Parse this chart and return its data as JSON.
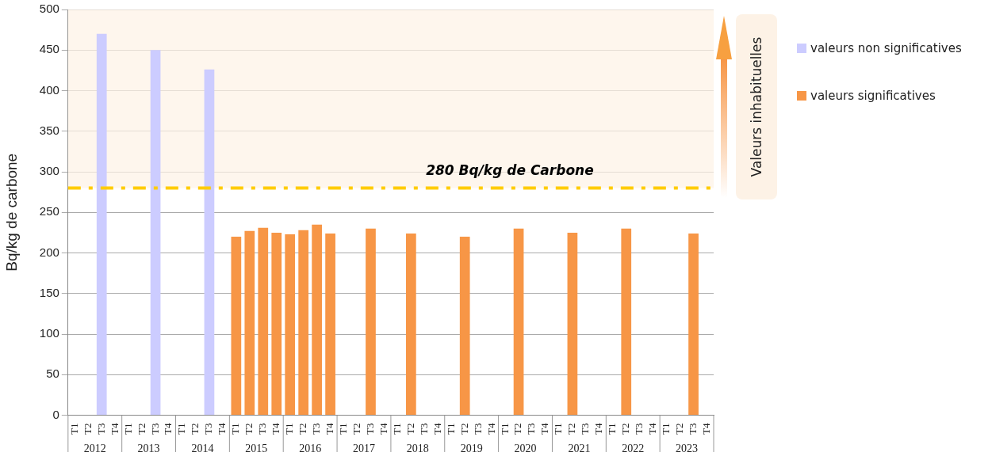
{
  "chart_data": {
    "type": "bar",
    "ylabel": "Bq/kg de carbone",
    "categories": [
      "T1",
      "T2",
      "T3",
      "T4",
      "T1",
      "T2",
      "T3",
      "T4",
      "T1",
      "T2",
      "T3",
      "T4",
      "T1",
      "T2",
      "T3",
      "T4",
      "T1",
      "T2",
      "T3",
      "T4",
      "T1",
      "T2",
      "T3",
      "T4",
      "T1",
      "T2",
      "T3",
      "T4",
      "T1",
      "T2",
      "T3",
      "T4",
      "T1",
      "T2",
      "T3",
      "T4",
      "T1",
      "T2",
      "T3",
      "T4",
      "T1",
      "T2",
      "T3",
      "T4",
      "T1",
      "T2",
      "T3",
      "T4"
    ],
    "series": [
      {
        "name": "valeurs non significatives",
        "color": "#ccccff",
        "values": [
          null,
          null,
          470,
          null,
          null,
          null,
          450,
          null,
          null,
          null,
          426,
          null,
          null,
          null,
          null,
          null,
          null,
          null,
          null,
          null,
          null,
          null,
          null,
          null,
          null,
          null,
          null,
          null,
          null,
          null,
          null,
          null,
          null,
          null,
          null,
          null,
          null,
          null,
          null,
          null,
          null,
          null,
          null,
          null,
          null,
          null,
          null,
          null
        ]
      },
      {
        "name": "valeurs significatives",
        "color": "#f79646",
        "values": [
          null,
          null,
          null,
          null,
          null,
          null,
          null,
          null,
          null,
          null,
          null,
          null,
          220,
          227,
          231,
          225,
          223,
          228,
          235,
          224,
          null,
          null,
          230,
          null,
          null,
          224,
          null,
          null,
          null,
          220,
          null,
          null,
          null,
          230,
          null,
          null,
          null,
          225,
          null,
          null,
          null,
          230,
          null,
          null,
          null,
          null,
          224,
          null
        ]
      }
    ],
    "stacked": true,
    "ylim": [
      0,
      500
    ],
    "yticks": [
      0,
      50,
      100,
      150,
      200,
      250,
      300,
      350,
      400,
      450,
      500
    ],
    "grid": "y",
    "legend": "right",
    "ref_lines": [
      {
        "axis": "y",
        "value": 280,
        "label": "280 Bq/kg de Carbone",
        "color": "#ffcc00",
        "line_style": "dashed"
      }
    ],
    "bands": [
      {
        "axis": "y",
        "from": 280,
        "to": 500,
        "label": "Valeurs inhabituelles",
        "color": "#fdf2e6"
      }
    ],
    "annotations": [
      "2012",
      "2013",
      "2014",
      "2015",
      "2016",
      "2017",
      "2018",
      "2019",
      "2020",
      "2021",
      "2022",
      "2023"
    ]
  }
}
